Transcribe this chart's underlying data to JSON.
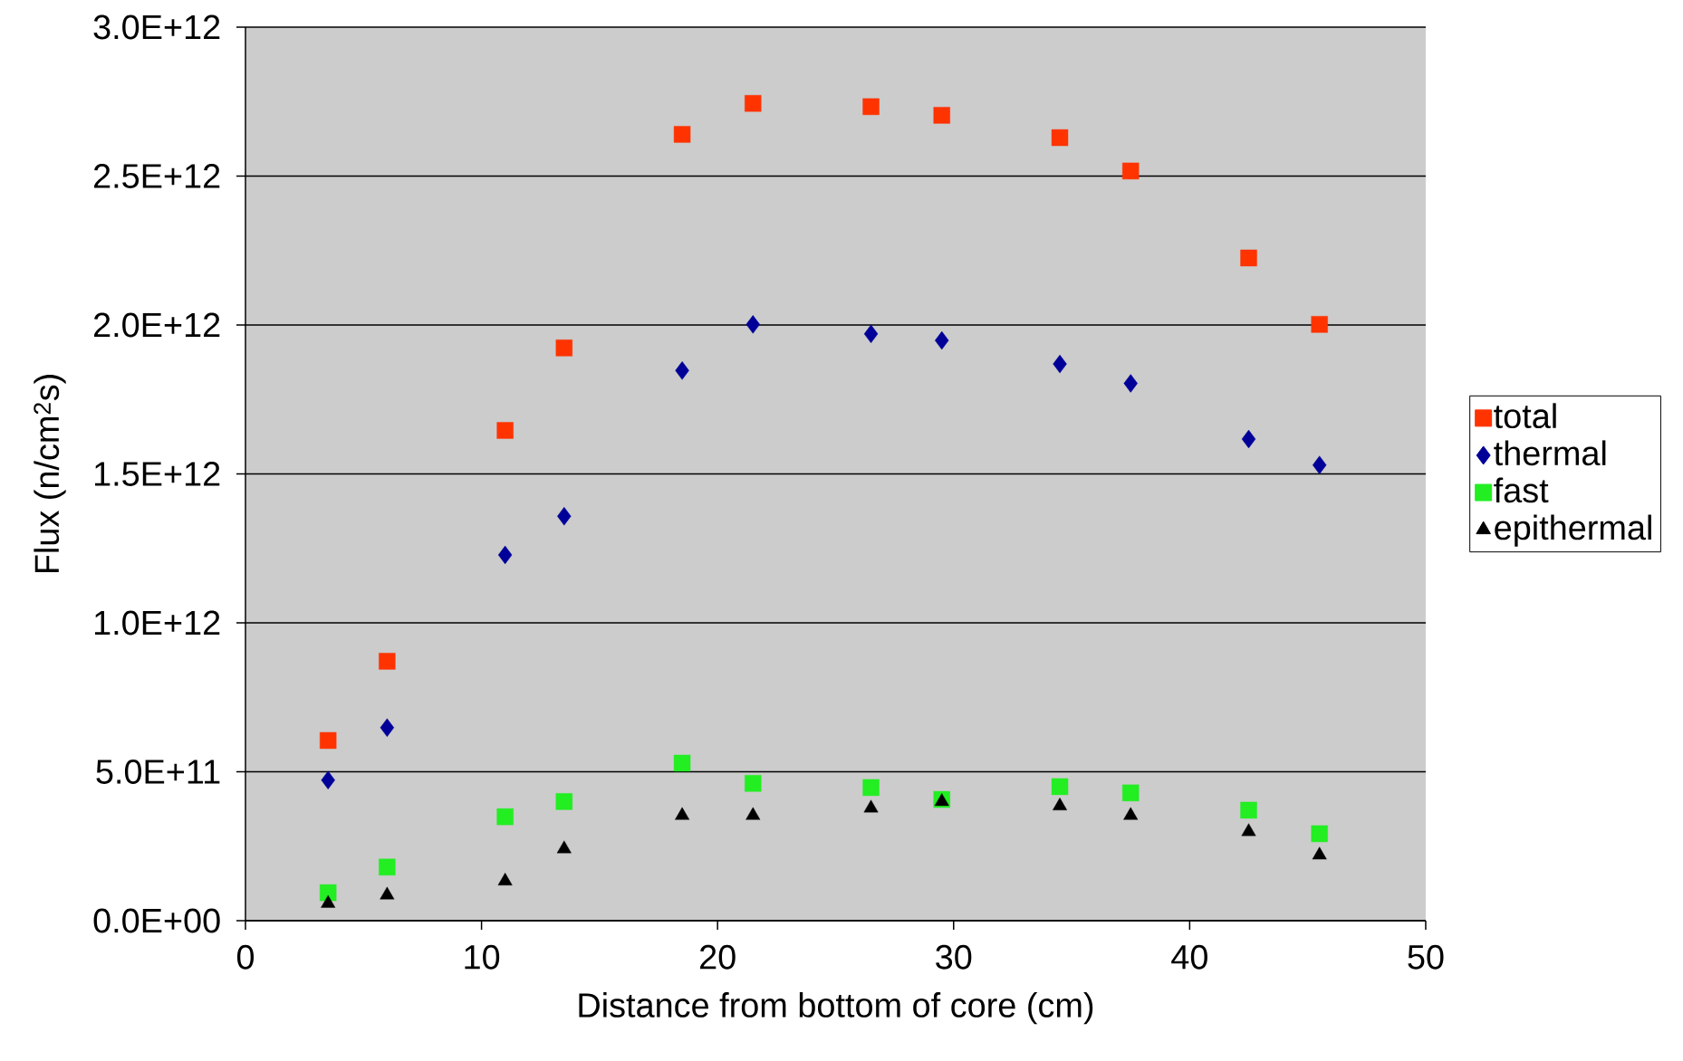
{
  "chart_data": {
    "type": "scatter",
    "xlabel": "Distance from bottom of core (cm)",
    "ylabel": "Flux (n/cm$^{2}$s)",
    "x": [
      3.5,
      6.0,
      11.0,
      13.5,
      18.5,
      21.5,
      26.5,
      29.5,
      34.5,
      37.5,
      42.5,
      45.5
    ],
    "series": [
      {
        "name": "total",
        "color": "#ff3300",
        "marker": "square",
        "values": [
          605000000000.0,
          871000000000.0,
          1646000000000.0,
          1923000000000.0,
          2640000000000.0,
          2744000000000.0,
          2733000000000.0,
          2704000000000.0,
          2629000000000.0,
          2517000000000.0,
          2225000000000.0,
          2002000000000.0
        ]
      },
      {
        "name": "thermal",
        "color": "#000099",
        "marker": "diamond",
        "values": [
          472000000000.0,
          648000000000.0,
          1228000000000.0,
          1358000000000.0,
          1847000000000.0,
          2002000000000.0,
          1970000000000.0,
          1948000000000.0,
          1869000000000.0,
          1804000000000.0,
          1617000000000.0,
          1530000000000.0
        ]
      },
      {
        "name": "fast",
        "color": "#22ee22",
        "marker": "square",
        "values": [
          94000000000.0,
          180000000000.0,
          349000000000.0,
          400000000000.0,
          529000000000.0,
          461000000000.0,
          447000000000.0,
          407000000000.0,
          450000000000.0,
          429000000000.0,
          371000000000.0,
          292000000000.0
        ]
      },
      {
        "name": "epithermal",
        "color": "#000000",
        "marker": "triangle",
        "values": [
          58000000000.0,
          86000000000.0,
          133000000000.0,
          241000000000.0,
          353000000000.0,
          353000000000.0,
          378000000000.0,
          400000000000.0,
          385000000000.0,
          353000000000.0,
          299000000000.0,
          220000000000.0
        ]
      }
    ],
    "xlim": [
      0,
      50
    ],
    "xticks": [
      0,
      10,
      20,
      30,
      40,
      50
    ],
    "ylim": [
      0,
      3000000000000.0
    ],
    "yticks": [
      {
        "value": 0,
        "label": "0.0E+00"
      },
      {
        "value": 500000000000.0,
        "label": "5.0E+11"
      },
      {
        "value": 1000000000000.0,
        "label": "1.0E+12"
      },
      {
        "value": 1500000000000.0,
        "label": "1.5E+12"
      },
      {
        "value": 2000000000000.0,
        "label": "2.0E+12"
      },
      {
        "value": 2500000000000.0,
        "label": "2.5E+12"
      },
      {
        "value": 3000000000000.0,
        "label": "3.0E+12"
      }
    ],
    "grid": "y",
    "legend": "right"
  }
}
